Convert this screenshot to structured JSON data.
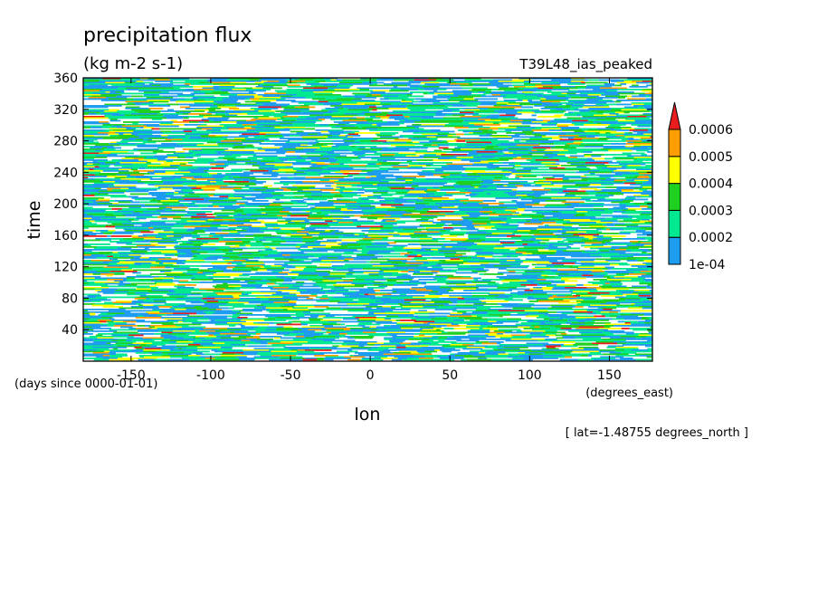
{
  "chart_data": {
    "type": "heatmap",
    "title": "precipitation flux",
    "units": "(kg m-2 s-1)",
    "experiment": "T39L48_ias_peaked",
    "xlabel": "lon",
    "ylabel": "time",
    "x_units": "(degrees_east)",
    "y_units": "(days since 0000-01-01)",
    "annotation": "[ lat=-1.48755 degrees_north ]",
    "xlim": [
      -180,
      177
    ],
    "ylim": [
      0,
      360
    ],
    "x_ticks": [
      -150,
      -100,
      -50,
      0,
      50,
      100,
      150
    ],
    "y_ticks": [
      40,
      80,
      120,
      160,
      200,
      240,
      280,
      320,
      360
    ],
    "x_tick_labels": [
      "-150",
      "-100",
      "-50",
      "0",
      "50",
      "100",
      "150"
    ],
    "y_tick_labels": [
      "40",
      "80",
      "120",
      "160",
      "200",
      "240",
      "280",
      "320",
      "360"
    ],
    "colorbar": {
      "levels": [
        0.0001,
        0.0002,
        0.0003,
        0.0004,
        0.0005,
        0.0006
      ],
      "labels": [
        "1e-04",
        "0.0002",
        "0.0003",
        "0.0004",
        "0.0005",
        "0.0006"
      ],
      "colors": [
        "#ffffff",
        "#1e9cf0",
        "#00e890",
        "#20d020",
        "#ffff00",
        "#ff9e00",
        "#e81e1e"
      ],
      "extend": "max"
    }
  }
}
